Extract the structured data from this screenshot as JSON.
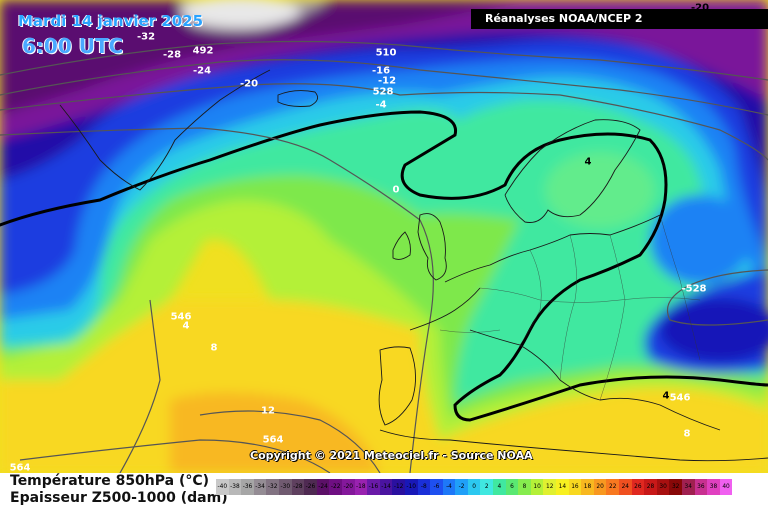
{
  "header": {
    "date": "Mardi 14 janvier 2025",
    "time": "6:00 UTC",
    "source_banner": "Réanalyses NOAA/NCEP 2"
  },
  "copyright": "Copyright © 2021 Meteociel.fr - Source NOAA",
  "legend": {
    "line1": "Température 850hPa (°C)",
    "line2": "Epaisseur Z500-1000 (dam)",
    "scale": [
      {
        "v": "-40",
        "c": "#c9c9c9"
      },
      {
        "v": "-38",
        "c": "#b8b8b8"
      },
      {
        "v": "-36",
        "c": "#a6a6a6"
      },
      {
        "v": "-34",
        "c": "#948c94"
      },
      {
        "v": "-32",
        "c": "#827382"
      },
      {
        "v": "-30",
        "c": "#705a70"
      },
      {
        "v": "-28",
        "c": "#5f405f"
      },
      {
        "v": "-26",
        "c": "#4f2a52"
      },
      {
        "v": "-24",
        "c": "#5c1068"
      },
      {
        "v": "-22",
        "c": "#6f0f82"
      },
      {
        "v": "-20",
        "c": "#84189b"
      },
      {
        "v": "-18",
        "c": "#9922b0"
      },
      {
        "v": "-16",
        "c": "#6a1aa8"
      },
      {
        "v": "-14",
        "c": "#4a14a0"
      },
      {
        "v": "-12",
        "c": "#2a10a0"
      },
      {
        "v": "-10",
        "c": "#1818b8"
      },
      {
        "v": "-8",
        "c": "#1a2fd8"
      },
      {
        "v": "-6",
        "c": "#1e50f0"
      },
      {
        "v": "-4",
        "c": "#1e78f8"
      },
      {
        "v": "-2",
        "c": "#20a0f8"
      },
      {
        "v": "0",
        "c": "#2cc8f0"
      },
      {
        "v": "2",
        "c": "#40e8e0"
      },
      {
        "v": "4",
        "c": "#40e8a0"
      },
      {
        "v": "6",
        "c": "#5ae872"
      },
      {
        "v": "8",
        "c": "#86ec4e"
      },
      {
        "v": "10",
        "c": "#b4f038"
      },
      {
        "v": "12",
        "c": "#e0f030"
      },
      {
        "v": "14",
        "c": "#f8f020"
      },
      {
        "v": "16",
        "c": "#f8d820"
      },
      {
        "v": "18",
        "c": "#f8b820"
      },
      {
        "v": "20",
        "c": "#f89820"
      },
      {
        "v": "22",
        "c": "#f87820"
      },
      {
        "v": "24",
        "c": "#f05020"
      },
      {
        "v": "26",
        "c": "#e02820"
      },
      {
        "v": "28",
        "c": "#c81818"
      },
      {
        "v": "30",
        "c": "#a81010"
      },
      {
        "v": "32",
        "c": "#880808"
      },
      {
        "v": "34",
        "c": "#a02050"
      },
      {
        "v": "36",
        "c": "#c83090"
      },
      {
        "v": "38",
        "c": "#e040c0"
      },
      {
        "v": "40",
        "c": "#f060f0"
      }
    ]
  },
  "map_labels": {
    "temperature": [
      "-32",
      "-28",
      "-24",
      "-20",
      "-16",
      "-12",
      "-4",
      "0",
      "4",
      "4",
      "8",
      "12",
      "4",
      "8",
      "-20"
    ],
    "thickness": [
      "492",
      "510",
      "528",
      "546",
      "564",
      "-528",
      "546",
      "564"
    ]
  },
  "colors": {
    "isotherm_0": "#000000",
    "thickness_lines": "#555555",
    "coast": "#1a1a1a",
    "banner_bg": "#000000",
    "title_blue": "#2aa3ff"
  }
}
